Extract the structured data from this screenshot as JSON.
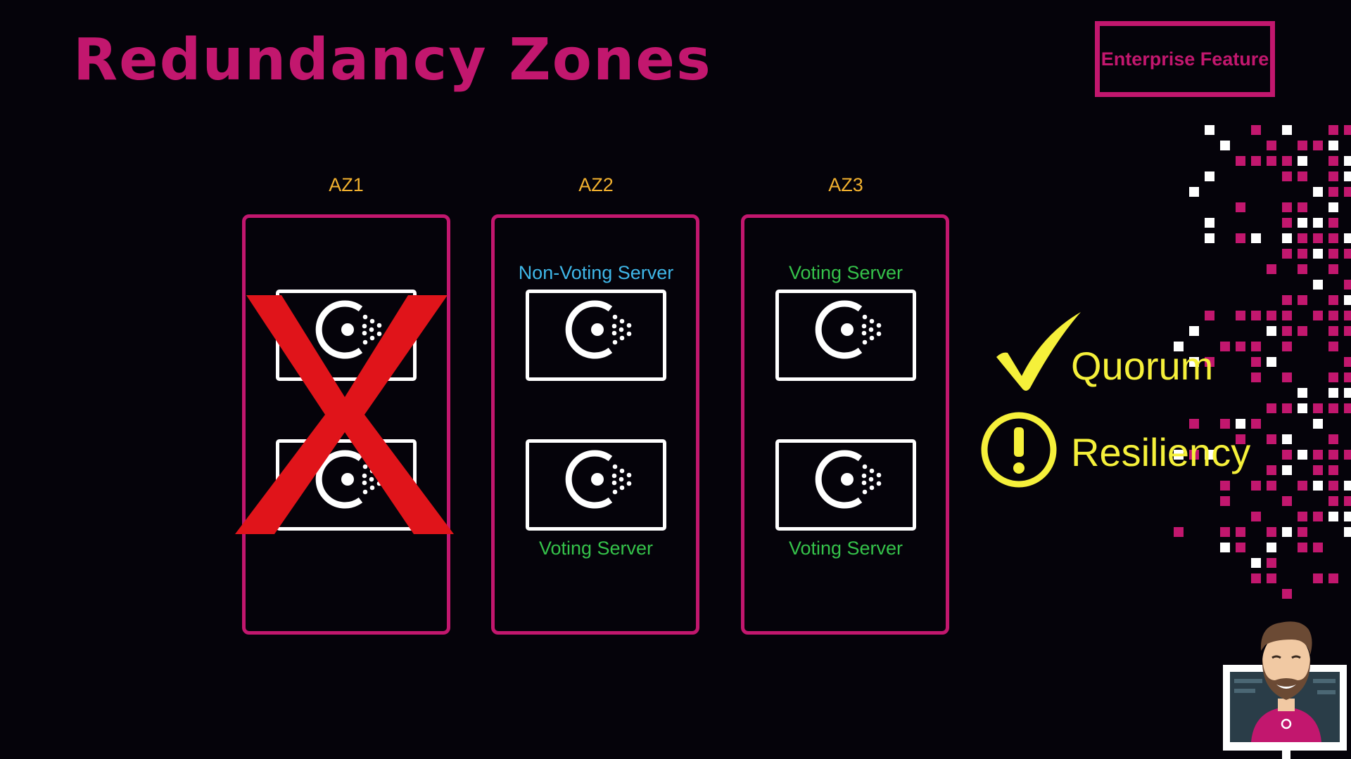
{
  "title": "Redundancy Zones",
  "badge": "Enterprise Feature",
  "zones": [
    {
      "label": "AZ1",
      "failed": true,
      "servers": [
        {
          "role": ""
        },
        {
          "role": ""
        }
      ]
    },
    {
      "label": "AZ2",
      "failed": false,
      "servers": [
        {
          "role": "Non-Voting Server"
        },
        {
          "role": "Voting Server"
        }
      ]
    },
    {
      "label": "AZ3",
      "failed": false,
      "servers": [
        {
          "role": "Voting Server"
        },
        {
          "role": "Voting Server"
        }
      ]
    }
  ],
  "status": [
    {
      "icon": "checkmark-icon",
      "text": "Quorum"
    },
    {
      "icon": "exclamation-circle-icon",
      "text": "Resiliency"
    }
  ],
  "colors": {
    "accent": "#c2176e",
    "zone_label": "#f2b12f",
    "voting": "#35c24a",
    "non_voting": "#3fb7e8",
    "status": "#f5f03a",
    "failure": "#e0141a"
  }
}
